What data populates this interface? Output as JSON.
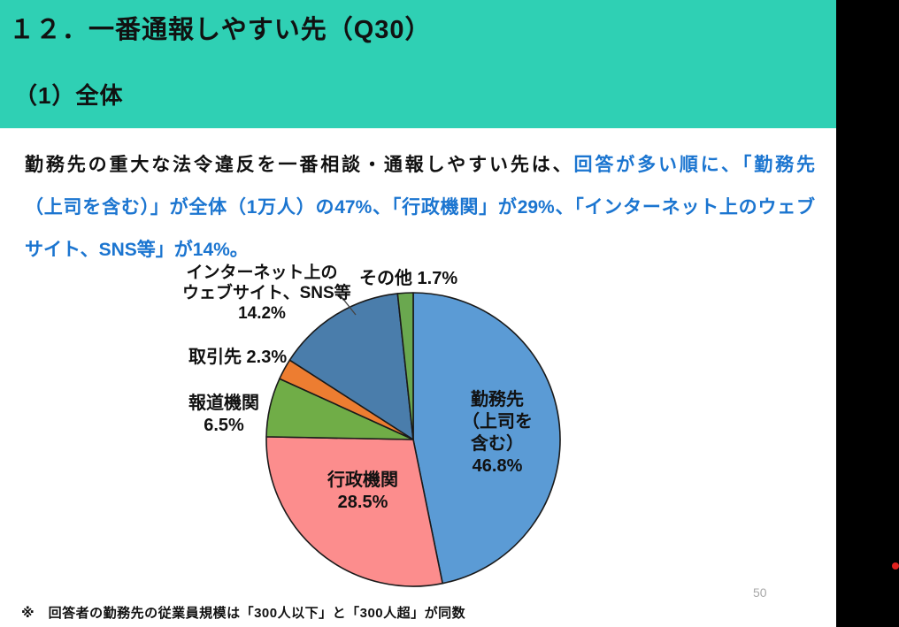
{
  "page": {
    "number": "50",
    "accent_teal": "#2fd0b4",
    "right_strip_color": "#000000",
    "red_dot_color": "#e0211e"
  },
  "header": {
    "title": "１２．一番通報しやすい先（Q30）",
    "subtitle": "（1）全体"
  },
  "lead_text": {
    "line1_black": "勤務先の重大な法令違反を一番相談・通報しやすい先は、",
    "line1_blue": "回答が多い順に、「勤務先",
    "line2_blue": "（上司を含む）」が全体（1万人）の47%、「行政機関」が29%、「インターネット上のウェブ",
    "line3_blue": "サイト、SNS等」が14%。",
    "highlight_color": "#1b75d0"
  },
  "chart_data": {
    "type": "pie",
    "title": "",
    "labels": [
      "勤務先（上司を含む）",
      "行政機関",
      "報道機関",
      "取引先",
      "インターネット上のウェブサイト、SNS等",
      "その他"
    ],
    "values": [
      46.8,
      28.5,
      6.5,
      2.3,
      14.2,
      1.7
    ],
    "unit": "%",
    "colors": [
      "#5b9bd5",
      "#fc8d8d",
      "#70ad47",
      "#ed7d31",
      "#4a7dab",
      "#6aa84f"
    ],
    "start_angle": "top",
    "direction": "clockwise",
    "legend": "none",
    "outline_color": "#1a1a1a",
    "label_placement": [
      "inside",
      "inside",
      "outside",
      "outside",
      "outside-callout",
      "outside"
    ]
  },
  "pie_labels": {
    "kinmusaki": {
      "l1": "勤務先",
      "l2": "（上司を",
      "l3": "含む）",
      "l4": "46.8%"
    },
    "gyosei": {
      "l1": "行政機関",
      "l2": "28.5%"
    },
    "hodo": {
      "l1": "報道機関",
      "l2": "6.5%"
    },
    "torihiki": "取引先 2.3%",
    "internet": {
      "l1": "インターネット上の",
      "l2": "ウェブサイト、SNS等",
      "l3": "14.2%"
    },
    "sonota": "その他 1.7%"
  },
  "footnote": "※　回答者の勤務先の従業員規模は「300人以下」と「300人超」が同数"
}
